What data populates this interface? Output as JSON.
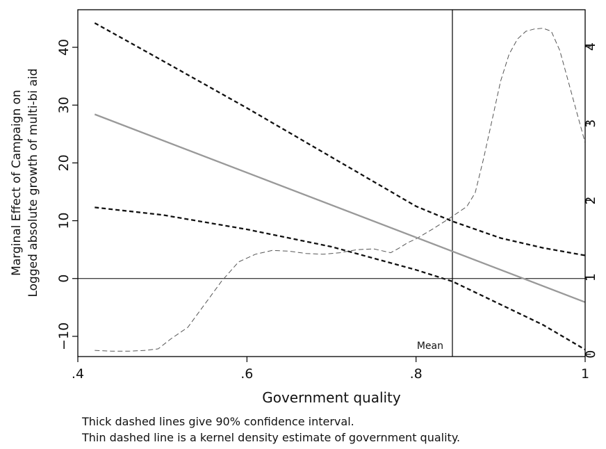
{
  "chart_data": {
    "type": "line",
    "xlabel": "Government quality",
    "ylabel_lines": [
      "Marginal Effect of Campaign on",
      "Logged absolute growth of multi-bi aid"
    ],
    "xlim": [
      0.4,
      1.0
    ],
    "ylim": [
      -13.5,
      46.5
    ],
    "y2lim": [
      -0.03,
      4.48
    ],
    "x_ticks": [
      0.4,
      0.6,
      0.8,
      1.0
    ],
    "x_tick_labels": [
      ".4",
      ".6",
      ".8",
      "1"
    ],
    "y_ticks": [
      -10,
      0,
      10,
      20,
      30,
      40
    ],
    "y_tick_labels": [
      "−10",
      "0",
      "10",
      "20",
      "30",
      "40"
    ],
    "y2_ticks": [
      0,
      1,
      2,
      3,
      4
    ],
    "y2_tick_labels": [
      "0",
      "1",
      "2",
      "3",
      "4"
    ],
    "grid": false,
    "colors": {
      "effect": "#999999",
      "ci": "#111111",
      "density": "#555555",
      "axis": "#000000"
    },
    "mean_line": {
      "x": 0.843,
      "label": "Mean"
    },
    "zero_line": 0,
    "series": [
      {
        "role": "effect",
        "style": "solid-gray",
        "axis": "left",
        "x": [
          0.42,
          1.0
        ],
        "y": [
          28.4,
          -4.1
        ]
      },
      {
        "role": "ci_upper",
        "style": "thick-dashed",
        "axis": "left",
        "x": [
          0.42,
          0.5,
          0.6,
          0.7,
          0.8,
          0.843,
          0.9,
          0.95,
          1.0
        ],
        "y": [
          44.2,
          37.7,
          29.5,
          21.0,
          12.5,
          9.9,
          7.0,
          5.3,
          4.0
        ]
      },
      {
        "role": "ci_lower",
        "style": "thick-dashed",
        "axis": "left",
        "x": [
          0.42,
          0.5,
          0.6,
          0.7,
          0.8,
          0.843,
          0.9,
          0.95,
          1.0
        ],
        "y": [
          12.3,
          11.0,
          8.5,
          5.5,
          1.5,
          -0.5,
          -4.5,
          -8.0,
          -12.3
        ]
      },
      {
        "role": "density",
        "style": "thin-dashed",
        "axis": "right",
        "x": [
          0.42,
          0.44,
          0.46,
          0.48,
          0.495,
          0.51,
          0.53,
          0.55,
          0.57,
          0.59,
          0.61,
          0.63,
          0.65,
          0.67,
          0.69,
          0.71,
          0.73,
          0.75,
          0.77,
          0.78,
          0.79,
          0.8,
          0.82,
          0.84,
          0.86,
          0.87,
          0.88,
          0.89,
          0.9,
          0.91,
          0.92,
          0.93,
          0.94,
          0.95,
          0.96,
          0.97,
          0.98,
          0.99,
          1.0
        ],
        "y": [
          0.05,
          0.04,
          0.04,
          0.05,
          0.07,
          0.2,
          0.35,
          0.65,
          0.95,
          1.2,
          1.3,
          1.35,
          1.34,
          1.31,
          1.3,
          1.32,
          1.36,
          1.37,
          1.32,
          1.38,
          1.45,
          1.5,
          1.63,
          1.77,
          1.92,
          2.1,
          2.55,
          3.05,
          3.55,
          3.9,
          4.1,
          4.2,
          4.23,
          4.24,
          4.2,
          3.95,
          3.55,
          3.15,
          2.75
        ]
      }
    ]
  },
  "notes": [
    "Thick dashed lines give 90% confidence interval.",
    "Thin dashed line is a kernel density estimate of government quality."
  ]
}
